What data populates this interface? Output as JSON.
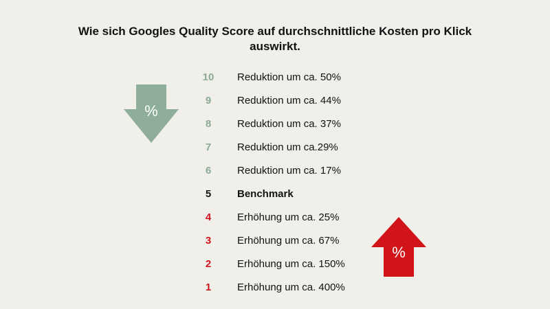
{
  "title": "Wie sich Googles Quality Score auf durchschnittliche Kosten pro Klick auswirkt.",
  "colors": {
    "background": "#f1efea",
    "decrease": "#8aaa95",
    "increase": "#d0141a",
    "benchmark": "#111111"
  },
  "arrows": {
    "down": {
      "icon": "arrow-down-percent-icon",
      "label": "%",
      "color": "#8fae9a"
    },
    "up": {
      "icon": "arrow-up-percent-icon",
      "label": "%",
      "color": "#d0141a"
    }
  },
  "scores": [
    {
      "score": "10",
      "text": "Reduktion um ca. 50%",
      "kind": "decrease"
    },
    {
      "score": "9",
      "text": "Reduktion um ca. 44%",
      "kind": "decrease"
    },
    {
      "score": "8",
      "text": "Reduktion um ca. 37%",
      "kind": "decrease"
    },
    {
      "score": "7",
      "text": "Reduktion um ca.29%",
      "kind": "decrease"
    },
    {
      "score": "6",
      "text": "Reduktion um ca. 17%",
      "kind": "decrease"
    },
    {
      "score": "5",
      "text": "Benchmark",
      "kind": "benchmark"
    },
    {
      "score": "4",
      "text": "Erhöhung um ca. 25%",
      "kind": "increase"
    },
    {
      "score": "3",
      "text": "Erhöhung um ca. 67%",
      "kind": "increase"
    },
    {
      "score": "2",
      "text": "Erhöhung um ca. 150%",
      "kind": "increase"
    },
    {
      "score": "1",
      "text": "Erhöhung um ca. 400%",
      "kind": "increase"
    }
  ]
}
